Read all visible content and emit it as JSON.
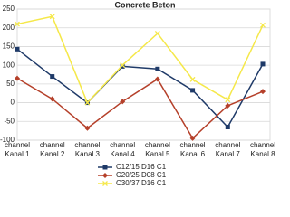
{
  "chart_data": {
    "type": "line",
    "title": "Concrete Beton",
    "categories": [
      [
        "channel",
        "Kanal 1"
      ],
      [
        "channel",
        "Kanal 2"
      ],
      [
        "channel",
        "Kanal 3"
      ],
      [
        "channel",
        "Kanal 4"
      ],
      [
        "channel",
        "Kanal 5"
      ],
      [
        "channel",
        "Kanal 6"
      ],
      [
        "channel",
        "Kanal 7"
      ],
      [
        "channel",
        "Kanal 8"
      ]
    ],
    "series": [
      {
        "name": "C12/15 D16 C1",
        "color": "#1f3a68",
        "marker": "square",
        "values": [
          143,
          70,
          0,
          97,
          90,
          33,
          -65,
          103
        ]
      },
      {
        "name": "C20/25 D08 C1",
        "color": "#b5402a",
        "marker": "diamond",
        "values": [
          65,
          10,
          -68,
          3,
          63,
          -95,
          -8,
          30
        ]
      },
      {
        "name": "C30/37 D16 C1",
        "color": "#f5e84a",
        "marker": "x",
        "values": [
          210,
          230,
          0,
          100,
          185,
          62,
          8,
          207
        ]
      }
    ],
    "ylim": [
      -100,
      250
    ],
    "yticks": [
      -100,
      -50,
      0,
      50,
      100,
      150,
      200,
      250
    ],
    "grid": true
  }
}
